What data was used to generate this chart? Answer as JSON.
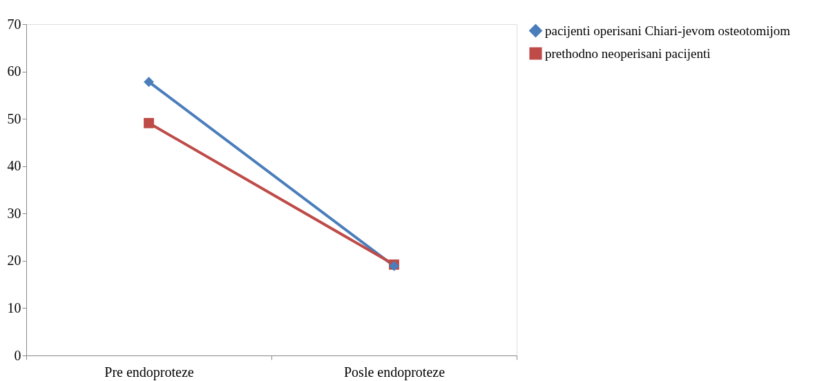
{
  "chart_data": {
    "type": "line",
    "categories": [
      "Pre endoproteze",
      "Posle endoproteze"
    ],
    "series": [
      {
        "name": "pacijenti operisani Chiari-jevom osteotomijom",
        "color": "#4a7ebb",
        "values": [
          57.8,
          18.9
        ],
        "marker": "diamond"
      },
      {
        "name": "prethodno neoperisani pacijenti",
        "color": "#be4b48",
        "values": [
          49.1,
          19.2
        ],
        "marker": "square"
      }
    ],
    "ylim": [
      0,
      70
    ],
    "yticks": [
      0,
      10,
      20,
      30,
      40,
      50,
      60,
      70
    ],
    "grid": false,
    "legend": "right"
  }
}
